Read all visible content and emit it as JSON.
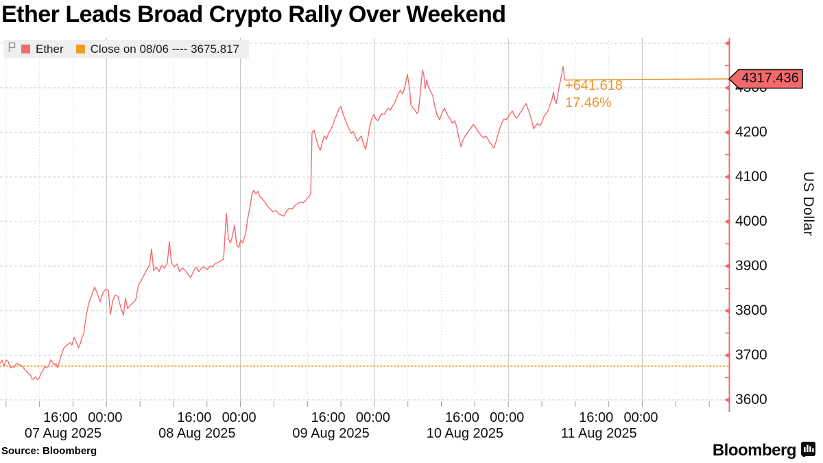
{
  "title": "Ether Leads Broad Crypto Rally Over Weekend",
  "legend": {
    "series_label": "Ether",
    "close_label": "Close on 08/06 ---- 3675.817"
  },
  "annotation": {
    "change": "+641.618",
    "percent": "17.46%"
  },
  "badge": {
    "value": "4317.436"
  },
  "y_axis": {
    "label": "US Dollar",
    "ticks": [
      4300,
      4200,
      4100,
      4000,
      3900,
      3800,
      3700,
      3600
    ]
  },
  "x_axis": {
    "days": [
      {
        "t1": "16:00",
        "t2": "00:00",
        "date": "07 Aug 2025"
      },
      {
        "t1": "16:00",
        "t2": "00:00",
        "date": "08 Aug 2025"
      },
      {
        "t1": "16:00",
        "t2": "00:00",
        "date": "09 Aug 2025"
      },
      {
        "t1": "16:00",
        "t2": "00:00",
        "date": "10 Aug 2025"
      },
      {
        "t1": "16:00",
        "t2": "00:00",
        "date": "11 Aug 2025"
      }
    ]
  },
  "source": "Source: Bloomberg",
  "brand": "Bloomberg",
  "colors": {
    "line": "#f4696c",
    "axis": "#f4696c",
    "orange": "#e8962d",
    "orange_dot": "#f0a33c",
    "grid": "#cccccc",
    "grid_vertical": "#d9d9d9",
    "grid_midnight": "#c3c3c3",
    "legend_bg": "#efefef",
    "badge_fill": "#f4696c"
  },
  "chart_data": {
    "type": "line",
    "title": "Ether Leads Broad Crypto Rally Over Weekend",
    "ylabel": "US Dollar",
    "ylim": [
      3574,
      4406
    ],
    "yticks": [
      3600,
      3700,
      3800,
      3900,
      4000,
      4100,
      4200,
      4300
    ],
    "x_unit": "px (time, 8.14 px per hour; vertical gridlines every 6h, solid at midnight)",
    "legend_position": "top-left",
    "grid": true,
    "reference_line": {
      "label": "Close on 08/06",
      "value": 3675.817,
      "style": "dotted"
    },
    "last_point": {
      "value": 4317.436,
      "change": "+641.618",
      "change_pct": "17.46%"
    },
    "series": [
      {
        "name": "Ether",
        "points": [
          [
            0,
            3682
          ],
          [
            6,
            3676
          ],
          [
            12,
            3686
          ],
          [
            18,
            3674
          ],
          [
            24,
            3682
          ],
          [
            30,
            3678
          ],
          [
            36,
            3668
          ],
          [
            42,
            3658
          ],
          [
            47,
            3646
          ],
          [
            52,
            3652
          ],
          [
            57,
            3648
          ],
          [
            62,
            3663
          ],
          [
            68,
            3672
          ],
          [
            74,
            3690
          ],
          [
            79,
            3679
          ],
          [
            84,
            3672
          ],
          [
            90,
            3703
          ],
          [
            95,
            3720
          ],
          [
            100,
            3726
          ],
          [
            105,
            3723
          ],
          [
            108,
            3740
          ],
          [
            112,
            3727
          ],
          [
            117,
            3726
          ],
          [
            122,
            3748
          ],
          [
            126,
            3792
          ],
          [
            130,
            3820
          ],
          [
            134,
            3836
          ],
          [
            138,
            3853
          ],
          [
            142,
            3838
          ],
          [
            146,
            3820
          ],
          [
            150,
            3840
          ],
          [
            154,
            3848
          ],
          [
            158,
            3846
          ],
          [
            161,
            3792
          ],
          [
            164,
            3820
          ],
          [
            168,
            3835
          ],
          [
            172,
            3832
          ],
          [
            176,
            3808
          ],
          [
            180,
            3790
          ],
          [
            183,
            3828
          ],
          [
            186,
            3805
          ],
          [
            190,
            3812
          ],
          [
            194,
            3818
          ],
          [
            198,
            3825
          ],
          [
            202,
            3858
          ],
          [
            206,
            3868
          ],
          [
            210,
            3880
          ],
          [
            214,
            3892
          ],
          [
            218,
            3902
          ],
          [
            221,
            3938
          ],
          [
            224,
            3890
          ],
          [
            228,
            3898
          ],
          [
            232,
            3888
          ],
          [
            236,
            3902
          ],
          [
            240,
            3895
          ],
          [
            244,
            3908
          ],
          [
            247,
            3955
          ],
          [
            250,
            3908
          ],
          [
            254,
            3898
          ],
          [
            258,
            3905
          ],
          [
            262,
            3888
          ],
          [
            266,
            3896
          ],
          [
            270,
            3890
          ],
          [
            274,
            3882
          ],
          [
            278,
            3874
          ],
          [
            282,
            3888
          ],
          [
            286,
            3898
          ],
          [
            290,
            3888
          ],
          [
            294,
            3896
          ],
          [
            298,
            3898
          ],
          [
            302,
            3892
          ],
          [
            306,
            3900
          ],
          [
            310,
            3898
          ],
          [
            314,
            3906
          ],
          [
            318,
            3908
          ],
          [
            322,
            3912
          ],
          [
            326,
            3916
          ],
          [
            330,
            4018
          ],
          [
            333,
            3962
          ],
          [
            336,
            3952
          ],
          [
            339,
            3968
          ],
          [
            342,
            3992
          ],
          [
            345,
            3948
          ],
          [
            348,
            3942
          ],
          [
            351,
            3958
          ],
          [
            354,
            3952
          ],
          [
            358,
            3972
          ],
          [
            361,
            4005
          ],
          [
            364,
            4028
          ],
          [
            367,
            4058
          ],
          [
            370,
            4070
          ],
          [
            373,
            4062
          ],
          [
            376,
            4068
          ],
          [
            379,
            4056
          ],
          [
            382,
            4052
          ],
          [
            386,
            4044
          ],
          [
            390,
            4034
          ],
          [
            394,
            4028
          ],
          [
            398,
            4022
          ],
          [
            402,
            4025
          ],
          [
            406,
            4018
          ],
          [
            410,
            4015
          ],
          [
            414,
            4012
          ],
          [
            418,
            4024
          ],
          [
            422,
            4030
          ],
          [
            426,
            4028
          ],
          [
            430,
            4036
          ],
          [
            434,
            4040
          ],
          [
            438,
            4044
          ],
          [
            442,
            4042
          ],
          [
            446,
            4048
          ],
          [
            450,
            4055
          ],
          [
            453,
            4062
          ],
          [
            455,
            4200
          ],
          [
            458,
            4205
          ],
          [
            461,
            4185
          ],
          [
            464,
            4170
          ],
          [
            467,
            4160
          ],
          [
            470,
            4178
          ],
          [
            473,
            4192
          ],
          [
            476,
            4185
          ],
          [
            479,
            4198
          ],
          [
            482,
            4205
          ],
          [
            485,
            4215
          ],
          [
            488,
            4228
          ],
          [
            491,
            4240
          ],
          [
            494,
            4252
          ],
          [
            497,
            4258
          ],
          [
            500,
            4242
          ],
          [
            503,
            4230
          ],
          [
            506,
            4218
          ],
          [
            509,
            4208
          ],
          [
            512,
            4198
          ],
          [
            515,
            4202
          ],
          [
            518,
            4192
          ],
          [
            521,
            4180
          ],
          [
            524,
            4186
          ],
          [
            527,
            4192
          ],
          [
            530,
            4174
          ],
          [
            533,
            4162
          ],
          [
            536,
            4185
          ],
          [
            539,
            4212
          ],
          [
            542,
            4230
          ],
          [
            545,
            4240
          ],
          [
            548,
            4230
          ],
          [
            551,
            4226
          ],
          [
            554,
            4236
          ],
          [
            557,
            4242
          ],
          [
            560,
            4240
          ],
          [
            563,
            4248
          ],
          [
            566,
            4254
          ],
          [
            569,
            4250
          ],
          [
            572,
            4258
          ],
          [
            575,
            4265
          ],
          [
            578,
            4276
          ],
          [
            581,
            4288
          ],
          [
            584,
            4294
          ],
          [
            587,
            4286
          ],
          [
            590,
            4300
          ],
          [
            594,
            4330
          ],
          [
            597,
            4300
          ],
          [
            599,
            4262
          ],
          [
            602,
            4255
          ],
          [
            605,
            4250
          ],
          [
            608,
            4242
          ],
          [
            610,
            4248
          ],
          [
            612,
            4275
          ],
          [
            616,
            4340
          ],
          [
            618,
            4328
          ],
          [
            620,
            4298
          ],
          [
            622,
            4318
          ],
          [
            625,
            4300
          ],
          [
            628,
            4292
          ],
          [
            631,
            4282
          ],
          [
            634,
            4258
          ],
          [
            637,
            4240
          ],
          [
            641,
            4228
          ],
          [
            644,
            4242
          ],
          [
            648,
            4254
          ],
          [
            651,
            4244
          ],
          [
            654,
            4235
          ],
          [
            657,
            4228
          ],
          [
            660,
            4220
          ],
          [
            663,
            4226
          ],
          [
            666,
            4212
          ],
          [
            669,
            4188
          ],
          [
            672,
            4168
          ],
          [
            675,
            4182
          ],
          [
            678,
            4192
          ],
          [
            681,
            4198
          ],
          [
            684,
            4205
          ],
          [
            687,
            4210
          ],
          [
            690,
            4218
          ],
          [
            693,
            4212
          ],
          [
            696,
            4205
          ],
          [
            699,
            4198
          ],
          [
            702,
            4192
          ],
          [
            705,
            4188
          ],
          [
            708,
            4192
          ],
          [
            711,
            4186
          ],
          [
            714,
            4178
          ],
          [
            717,
            4172
          ],
          [
            720,
            4165
          ],
          [
            723,
            4178
          ],
          [
            726,
            4195
          ],
          [
            729,
            4210
          ],
          [
            732,
            4222
          ],
          [
            735,
            4230
          ],
          [
            738,
            4228
          ],
          [
            741,
            4235
          ],
          [
            744,
            4242
          ],
          [
            747,
            4248
          ],
          [
            750,
            4238
          ],
          [
            753,
            4232
          ],
          [
            756,
            4238
          ],
          [
            759,
            4245
          ],
          [
            762,
            4252
          ],
          [
            765,
            4260
          ],
          [
            767,
            4265
          ],
          [
            770,
            4252
          ],
          [
            773,
            4238
          ],
          [
            776,
            4222
          ],
          [
            778,
            4208
          ],
          [
            781,
            4215
          ],
          [
            784,
            4220
          ],
          [
            787,
            4215
          ],
          [
            790,
            4222
          ],
          [
            793,
            4235
          ],
          [
            796,
            4242
          ],
          [
            799,
            4248
          ],
          [
            802,
            4262
          ],
          [
            805,
            4275
          ],
          [
            807,
            4290
          ],
          [
            809,
            4272
          ],
          [
            811,
            4264
          ],
          [
            813,
            4282
          ],
          [
            815,
            4300
          ],
          [
            817,
            4315
          ],
          [
            819,
            4330
          ],
          [
            821,
            4348
          ],
          [
            822,
            4338
          ],
          [
            823,
            4317.436
          ]
        ]
      }
    ]
  }
}
